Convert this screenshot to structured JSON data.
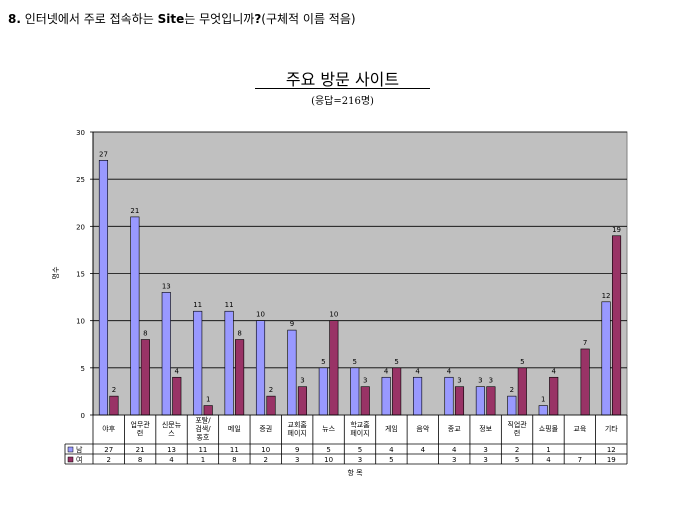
{
  "question": {
    "number": "8.",
    "text_a": " 인터넷에서 주로 접속하는 ",
    "site": "Site",
    "text_b": "는 무엇입니까",
    "qmark": "?",
    "text_c": "(구체적 이름 적음)"
  },
  "chart_data": {
    "type": "bar",
    "title": "주요 방문 사이트",
    "subtitle": "(응답=216명)",
    "ylabel": "명수",
    "xlabel": "항 목",
    "ylim": [
      0,
      30
    ],
    "yticks": [
      0,
      5,
      10,
      15,
      20,
      25,
      30
    ],
    "grid": true,
    "legend": "data-table-left",
    "categories": [
      [
        "야후"
      ],
      [
        "업무관",
        "련"
      ],
      [
        "신문뉴",
        "스"
      ],
      [
        "포탈/",
        "검색/",
        "동호"
      ],
      [
        "메일"
      ],
      [
        "증권"
      ],
      [
        "교회홈",
        "페이지"
      ],
      [
        "뉴스"
      ],
      [
        "학교홈",
        "페이지"
      ],
      [
        "게임"
      ],
      [
        "음악"
      ],
      [
        "종교"
      ],
      [
        "정보"
      ],
      [
        "직업관",
        "련"
      ],
      [
        "쇼핑몰"
      ],
      [
        "교육"
      ],
      [
        "기타"
      ]
    ],
    "series": [
      {
        "name": "남",
        "color": "#9999ff",
        "values": [
          27,
          21,
          13,
          11,
          11,
          10,
          9,
          5,
          5,
          4,
          4,
          4,
          3,
          2,
          1,
          null,
          12
        ]
      },
      {
        "name": "여",
        "color": "#993366",
        "values": [
          2,
          8,
          4,
          1,
          8,
          2,
          3,
          10,
          3,
          5,
          null,
          3,
          3,
          5,
          4,
          7,
          19
        ]
      }
    ],
    "plot_bg": "#c0c0c0"
  }
}
